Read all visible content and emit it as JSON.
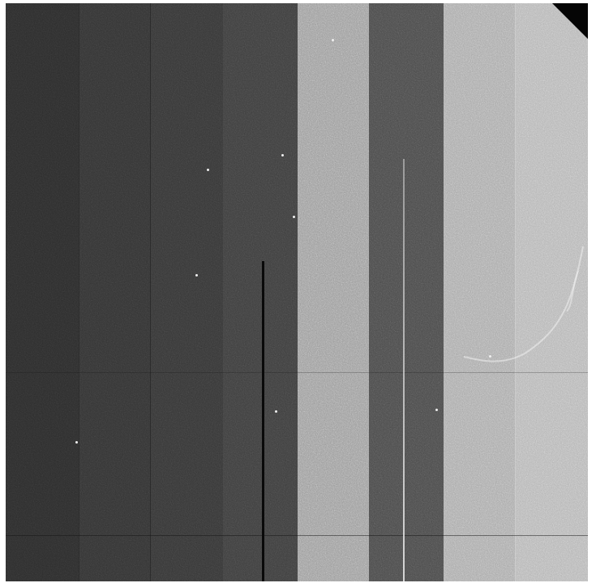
{
  "image": {
    "kind": "noisy grayscale detector frame with vertical readout strips",
    "strips": [
      {
        "tone": "#2c2c2c"
      },
      {
        "tone": "#333333"
      },
      {
        "tone": "#363636"
      },
      {
        "tone": "#3d3d3d"
      },
      {
        "tone": "#9a9a9a"
      },
      {
        "tone": "#4a4a4a"
      },
      {
        "tone": "#a8a8a8"
      },
      {
        "tone": "#b4b4b4"
      }
    ],
    "colors": {
      "background": "#ffffff",
      "dark_line": "#0a0a0a",
      "bright_line": "#e6e6e6",
      "corner": "#050505"
    }
  }
}
